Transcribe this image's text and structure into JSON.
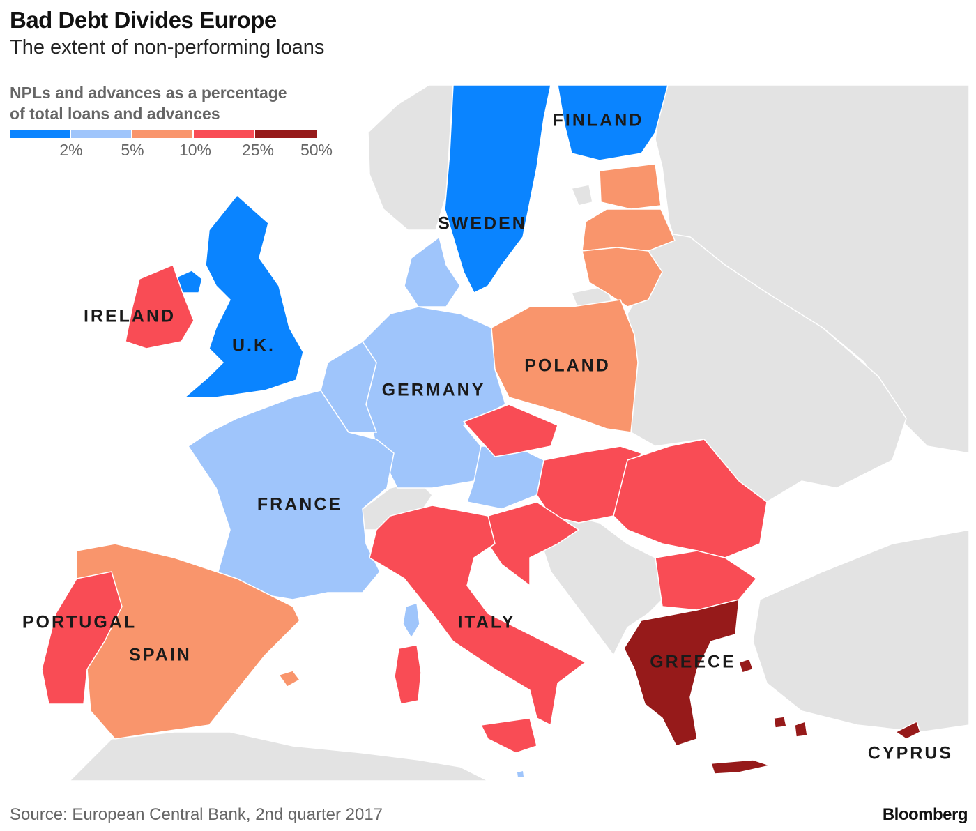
{
  "header": {
    "title": "Bad Debt Divides Europe",
    "subtitle": "The extent of non-performing loans"
  },
  "legend": {
    "label_line1": "NPLs and advances as a percentage",
    "label_line2": "of total loans and advances",
    "bins": [
      {
        "color": "#0a84ff",
        "upper": "2%"
      },
      {
        "color": "#9fc5fb",
        "upper": "5%"
      },
      {
        "color": "#f9956c",
        "upper": "10%"
      },
      {
        "color": "#f94c55",
        "upper": "25%"
      },
      {
        "color": "#961a1a",
        "upper": "50%"
      }
    ]
  },
  "colors": {
    "land_other": "#e3e3e3",
    "sea": "#ffffff",
    "border": "#ffffff"
  },
  "countries": {
    "finland": {
      "label": "FINLAND",
      "bin": "under 2%"
    },
    "sweden": {
      "label": "SWEDEN",
      "bin": "under 2%"
    },
    "uk": {
      "label": "U.K.",
      "bin": "under 2%"
    },
    "ireland": {
      "label": "IRELAND",
      "bin": "10-25%"
    },
    "germany": {
      "label": "GERMANY",
      "bin": "2-5%"
    },
    "poland": {
      "label": "POLAND",
      "bin": "5-10%"
    },
    "france": {
      "label": "FRANCE",
      "bin": "2-5%"
    },
    "spain": {
      "label": "SPAIN",
      "bin": "5-10%"
    },
    "portugal": {
      "label": "PORTUGAL",
      "bin": "10-25%"
    },
    "italy": {
      "label": "ITALY",
      "bin": "10-25%"
    },
    "greece": {
      "label": "GREECE",
      "bin": "25-50%"
    },
    "cyprus": {
      "label": "CYPRUS",
      "bin": "25-50%"
    }
  },
  "footer": {
    "source": "Source: European Central Bank, 2nd quarter 2017",
    "brand": "Bloomberg"
  }
}
